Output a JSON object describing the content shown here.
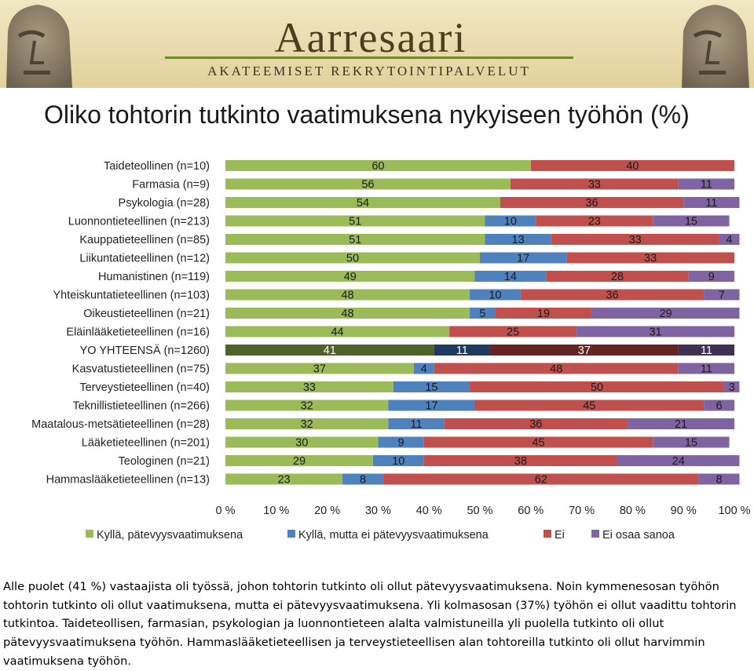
{
  "header": {
    "logo_text": "Aarresaari",
    "logo_tagline": "AKATEEMISET REKRYTOINTIPALVELUT"
  },
  "title": "Oliko tohtorin tutkinto vaatimuksena nykyiseen työhön (%)",
  "colors": {
    "yes_qualification": "#9bbb59",
    "yes_not_qualification": "#4f81bd",
    "no": "#c0504d",
    "cannot_say": "#8064a2",
    "total_yes_qualification": "#4f6228",
    "total_yes_not_qualification": "#1f3a5f",
    "total_no": "#632523",
    "total_cannot_say": "#3f3151"
  },
  "chart_data": {
    "type": "bar",
    "orientation": "horizontal",
    "stacked": true,
    "categories": [
      "Taideteollinen (n=10)",
      "Farmasia (n=9)",
      "Psykologia (n=28)",
      "Luonnontieteellinen (n=213)",
      "Kauppatieteellinen (n=85)",
      "Liikuntatieteellinen (n=12)",
      "Humanistinen (n=119)",
      "Yhteiskuntatieteellinen (n=103)",
      "Oikeustieteellinen (n=21)",
      "Eläinlääketieteellinen (n=16)",
      "YO YHTEENSÄ (n=1260)",
      "Kasvatustieteellinen (n=75)",
      "Terveystieteellinen (n=40)",
      "Teknillistieteellinen (n=266)",
      "Maatalous-metsätieteellinen (n=28)",
      "Lääketieteellinen (n=201)",
      "Teologinen (n=21)",
      "Hammaslääketieteellinen (n=13)"
    ],
    "highlight_category": "YO YHTEENSÄ (n=1260)",
    "series": [
      {
        "name": "Kyllä, pätevyysvaatimuksena",
        "values": [
          60,
          56,
          54,
          51,
          51,
          50,
          49,
          48,
          48,
          44,
          41,
          37,
          33,
          32,
          32,
          30,
          29,
          23
        ]
      },
      {
        "name": "Kyllä, mutta ei pätevyysvaatimuksena",
        "values": [
          0,
          0,
          0,
          10,
          13,
          17,
          14,
          10,
          5,
          0,
          11,
          4,
          15,
          17,
          11,
          9,
          10,
          8
        ]
      },
      {
        "name": "Ei",
        "values": [
          40,
          33,
          36,
          23,
          33,
          33,
          28,
          36,
          19,
          25,
          37,
          48,
          50,
          45,
          36,
          45,
          38,
          62
        ]
      },
      {
        "name": "Ei osaa sanoa",
        "values": [
          0,
          11,
          11,
          15,
          4,
          0,
          9,
          7,
          29,
          31,
          11,
          11,
          3,
          6,
          21,
          15,
          24,
          8
        ]
      }
    ],
    "xlim": [
      0,
      100
    ],
    "xticks": [
      "0 %",
      "10 %",
      "20 %",
      "30 %",
      "40 %",
      "50 %",
      "60 %",
      "70 %",
      "80 %",
      "90 %",
      "100 %"
    ],
    "legend_position": "bottom",
    "data_labels": true,
    "grid": false
  },
  "note": "Alle puolet (41 %) vastaajista oli työssä, johon tohtorin tutkinto oli ollut pätevyysvaatimuksena. Noin kymmenesosan työhön tohtorin tutkinto oli ollut vaatimuksena, mutta ei pätevyysvaatimuksena. Yli kolmasosan (37%) työhön ei ollut vaadittu tohtorin tutkintoa. Taideteollisen, farmasian, psykologian ja luonnontieteen alalta valmistuneilla yli puolella tutkinto oli ollut pätevyysvaatimuksena työhön. Hammaslääketieteellisen ja terveystieteellisen alan tohtoreilla tutkinto oli ollut harvimmin vaatimuksena työhön."
}
